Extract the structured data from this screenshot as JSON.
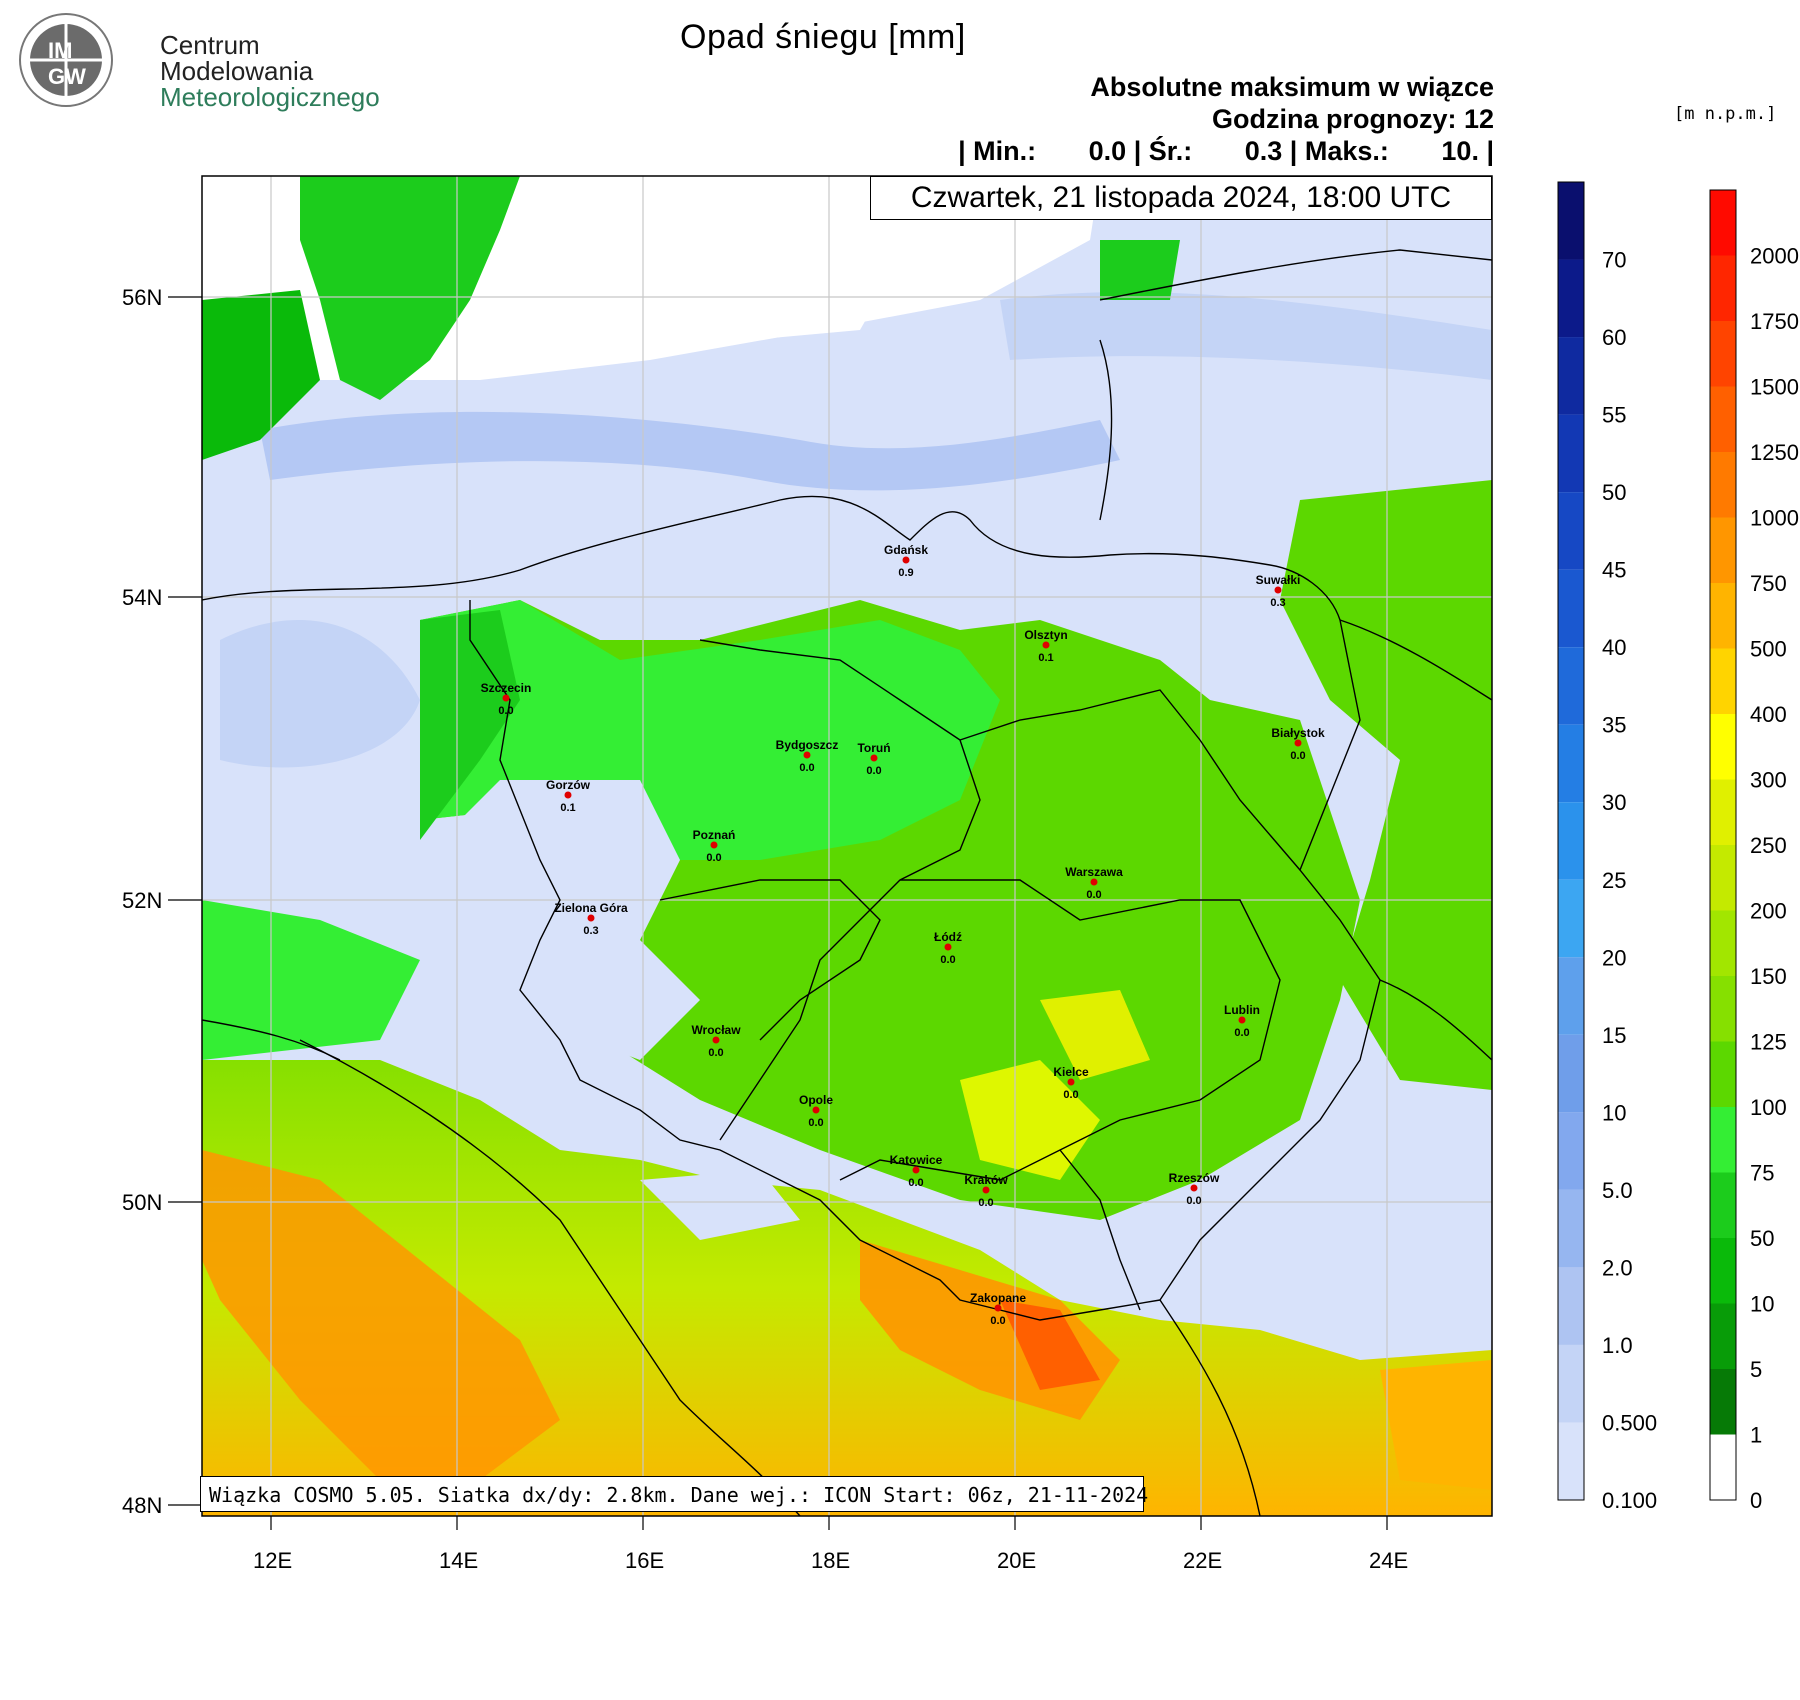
{
  "logo": {
    "badge_line1": "IM",
    "badge_line2": "GW",
    "line1": "Centrum",
    "line2": "Modelowania",
    "line3": "Meteorologicznego"
  },
  "title": "Opad śniegu [mm]",
  "subtitle": {
    "line1": "Absolutne maksimum w wiązce",
    "line2": "Godzina prognozy: 12",
    "line3": "| Min.:       0.0 | Śr.:       0.3 | Maks.:       10. |"
  },
  "date_box": "Czwartek, 21 listopada 2024, 18:00 UTC",
  "footer_box": "Wiązka COSMO 5.05. Siatka dx/dy: 2.8km. Dane wej.: ICON Start: 06z, 21-11-2024",
  "units_label": "[m n.p.m.]",
  "axes": {
    "lat_ticks": [
      "56N",
      "54N",
      "52N",
      "50N",
      "48N"
    ],
    "lon_ticks": [
      "12E",
      "14E",
      "16E",
      "18E",
      "20E",
      "22E",
      "24E"
    ]
  },
  "cities": [
    {
      "name": "Gdańsk",
      "value": "0.9"
    },
    {
      "name": "Suwałki",
      "value": "0.3"
    },
    {
      "name": "Olsztyn",
      "value": "0.1"
    },
    {
      "name": "Szczecin",
      "value": "0.0"
    },
    {
      "name": "Bydgoszcz",
      "value": "0.0"
    },
    {
      "name": "Toruń",
      "value": "0.0"
    },
    {
      "name": "Białystok",
      "value": "0.0"
    },
    {
      "name": "Gorzów",
      "value": "0.1"
    },
    {
      "name": "Poznań",
      "value": "0.0"
    },
    {
      "name": "Warszawa",
      "value": "0.0"
    },
    {
      "name": "Zielona Góra",
      "value": "0.3"
    },
    {
      "name": "Łódź",
      "value": "0.0"
    },
    {
      "name": "Lublin",
      "value": "0.0"
    },
    {
      "name": "Wrocław",
      "value": "0.0"
    },
    {
      "name": "Kielce",
      "value": "0.0"
    },
    {
      "name": "Opole",
      "value": "0.0"
    },
    {
      "name": "Katowice",
      "value": "0.0"
    },
    {
      "name": "Kraków",
      "value": "0.0"
    },
    {
      "name": "Rzeszów",
      "value": "0.0"
    },
    {
      "name": "Zakopane",
      "value": "0.0"
    }
  ],
  "snow_scale": {
    "labels": [
      "70",
      "60",
      "55",
      "50",
      "45",
      "40",
      "35",
      "30",
      "25",
      "20",
      "15",
      "10",
      "5.0",
      "2.0",
      "1.0",
      "0.500",
      "0.100"
    ],
    "colors": [
      "#0a0f6e",
      "#0c1a8a",
      "#0f2aa0",
      "#1238b4",
      "#1648c4",
      "#1a58d0",
      "#1f6ada",
      "#247ee4",
      "#2b92ec",
      "#3ca6f2",
      "#5ea0ec",
      "#6f9eea",
      "#82a8ee",
      "#96b6f0",
      "#aec4f2",
      "#c4d4f6",
      "#d8e2fa"
    ]
  },
  "terrain_scale": {
    "labels": [
      "2000",
      "1750",
      "1500",
      "1250",
      "1000",
      "750",
      "500",
      "400",
      "300",
      "250",
      "200",
      "150",
      "125",
      "100",
      "75",
      "50",
      "10",
      "5",
      "1",
      "0"
    ],
    "colors": [
      "#ff0a00",
      "#ff2600",
      "#ff4400",
      "#ff6000",
      "#ff7a00",
      "#ff9600",
      "#ffb400",
      "#ffd400",
      "#ffff00",
      "#e0f000",
      "#c4ea00",
      "#a2e600",
      "#86e000",
      "#5cd800",
      "#34ee34",
      "#1ccc1c",
      "#0aba0a",
      "#089c08",
      "#067a06",
      "#ffffff"
    ]
  }
}
